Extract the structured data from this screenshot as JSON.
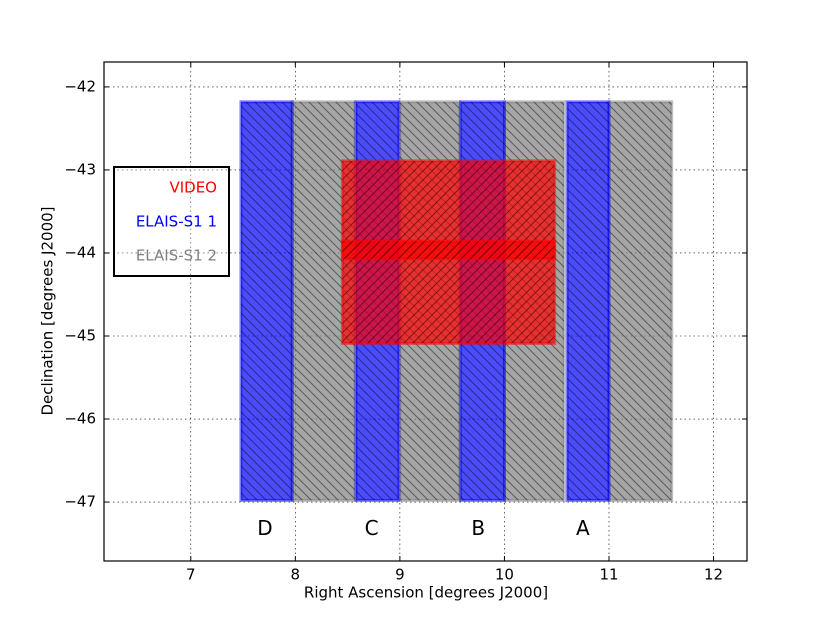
{
  "chart_data": {
    "type": "rect",
    "xlabel": "Right Ascension [degrees J2000]",
    "ylabel": "Declination [degrees J2000]",
    "xlim": [
      6.17,
      12.32
    ],
    "ylim": [
      -47.71,
      -41.7
    ],
    "xticks": [
      7,
      8,
      9,
      10,
      11,
      12
    ],
    "yticks": [
      {
        "value": -42,
        "label": "−42"
      },
      {
        "value": -43,
        "label": "−43"
      },
      {
        "value": -44,
        "label": "−44"
      },
      {
        "value": -45,
        "label": "−45"
      },
      {
        "value": -46,
        "label": "−46"
      },
      {
        "value": -47,
        "label": "−47"
      }
    ],
    "grid": true,
    "legend": "upper left",
    "series": [
      {
        "name": "VIDEO",
        "color": "#ff0000",
        "hatch": "/",
        "rects": [
          [
            8.45,
            10.48,
            -45.09,
            -42.89
          ],
          [
            8.45,
            10.48,
            -44.07,
            -43.86
          ]
        ]
      },
      {
        "name": "ELAIS-S1 1",
        "color": "#0000ff",
        "hatch": "\\",
        "rects": [
          [
            7.48,
            7.97,
            -46.98,
            -42.18
          ],
          [
            8.58,
            8.99,
            -46.98,
            -42.18
          ],
          [
            9.58,
            10.0,
            -46.98,
            -42.18
          ],
          [
            10.6,
            11.0,
            -46.98,
            -42.18
          ]
        ]
      },
      {
        "name": "ELAIS-S1 2",
        "color": "#808080",
        "hatch": "\\",
        "rects": [
          [
            7.97,
            8.57,
            -46.98,
            -42.18
          ],
          [
            9.0,
            9.57,
            -46.98,
            -42.18
          ],
          [
            10.0,
            10.57,
            -46.98,
            -42.18
          ],
          [
            11.0,
            11.6,
            -46.98,
            -42.18
          ]
        ]
      }
    ],
    "annotations": [
      {
        "text": "D",
        "x": 7.71,
        "y": -47.33
      },
      {
        "text": "C",
        "x": 8.73,
        "y": -47.33
      },
      {
        "text": "B",
        "x": 9.75,
        "y": -47.33
      },
      {
        "text": "A",
        "x": 10.75,
        "y": -47.33
      }
    ]
  }
}
